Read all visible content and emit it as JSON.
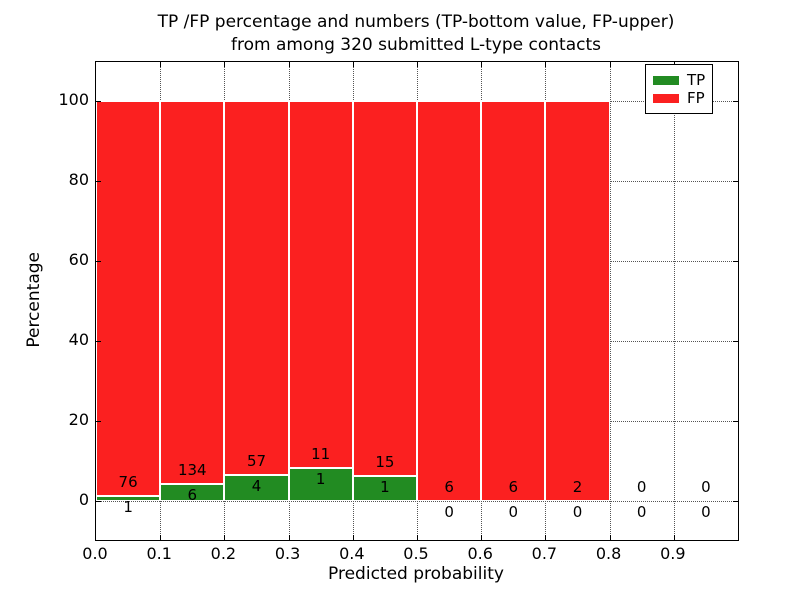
{
  "figure": {
    "title_line1": "TP /FP percentage and numbers (TP-bottom value, FP-upper)",
    "title_line2": "from among 320 submitted L-type contacts",
    "xlabel": "Predicted probability",
    "ylabel": "Percentage"
  },
  "legend": {
    "position": "upper-right",
    "entries": [
      {
        "label": "TP",
        "color": "#228b22"
      },
      {
        "label": "FP",
        "color": "#fb2020"
      }
    ]
  },
  "chart_data": {
    "type": "stacked_bar_percentage",
    "title": "TP /FP percentage and numbers (TP-bottom value, FP-upper) from among 320 submitted L-type contacts",
    "xlabel": "Predicted probability",
    "ylabel": "Percentage",
    "total_contacts": 320,
    "categories": [
      "0.0-0.1",
      "0.1-0.2",
      "0.2-0.3",
      "0.3-0.4",
      "0.4-0.5",
      "0.5-0.6",
      "0.6-0.7",
      "0.7-0.8",
      "0.8-0.9",
      "0.9-1.0"
    ],
    "bin_left_edges": [
      0.0,
      0.1,
      0.2,
      0.3,
      0.4,
      0.5,
      0.6,
      0.7,
      0.8,
      0.9
    ],
    "bin_width": 0.1,
    "series": [
      {
        "name": "TP",
        "color": "#228b22",
        "counts": [
          1,
          6,
          4,
          1,
          1,
          0,
          0,
          0,
          0,
          0
        ]
      },
      {
        "name": "FP",
        "color": "#fb2020",
        "counts": [
          76,
          134,
          57,
          11,
          15,
          6,
          6,
          2,
          0,
          0
        ]
      }
    ],
    "bars_reach_percent": 100,
    "x_tick_labels": [
      "0.0",
      "0.1",
      "0.2",
      "0.3",
      "0.4",
      "0.5",
      "0.6",
      "0.7",
      "0.8",
      "0.9"
    ],
    "y_tick_values": [
      0,
      20,
      40,
      60,
      80,
      100
    ],
    "xlim": [
      0.0,
      1.0
    ],
    "ylim": [
      -10,
      110
    ],
    "grid": "dotted",
    "annotation_note": "FP count printed above the TP/FP boundary, TP count below it"
  }
}
